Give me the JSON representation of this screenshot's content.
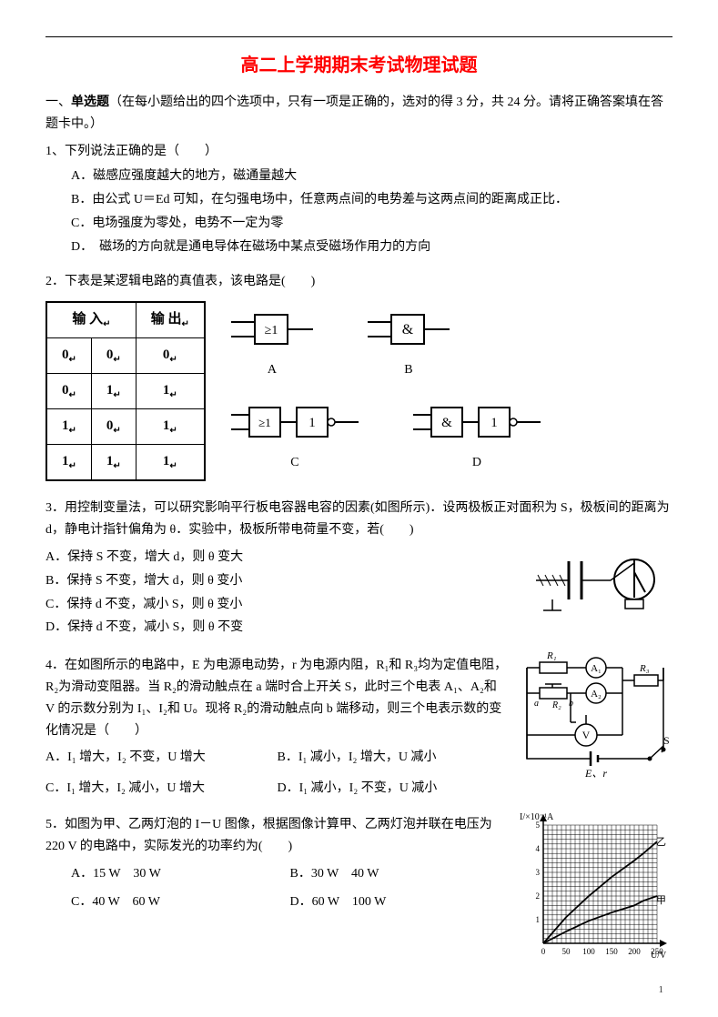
{
  "title": "高二上学期期末考试物理试题",
  "section1_header": "一、单选题（在每小题给出的四个选项中，只有一项是正确的，选对的得 3 分，共 24 分。请将正确答案填在答题卡中。）",
  "bold_word": "单选题",
  "q1": {
    "stem": "1、下列说法正确的是（　　）",
    "A": "A．磁感应强度越大的地方，磁通量越大",
    "B": "B．由公式 U＝Ed 可知，在匀强电场中，任意两点间的电势差与这两点间的距离成正比．",
    "C": "C．电场强度为零处，电势不一定为零",
    "D": "D．　磁场的方向就是通电导体在磁场中某点受磁场作用力的方向"
  },
  "q2": {
    "stem": "2．下表是某逻辑电路的真值表，该电路是(　　)",
    "table": {
      "head_in": "输 入",
      "head_out": "输 出",
      "rows": [
        [
          "0",
          "0",
          "0"
        ],
        [
          "0",
          "1",
          "1"
        ],
        [
          "1",
          "0",
          "1"
        ],
        [
          "1",
          "1",
          "1"
        ]
      ],
      "border_color": "#000000",
      "cell_font_size": 15,
      "suffix_mark": "↵"
    },
    "gates": {
      "A": {
        "label": "A",
        "blocks": [
          "≥1"
        ]
      },
      "B": {
        "label": "B",
        "blocks": [
          "&"
        ]
      },
      "C": {
        "label": "C",
        "blocks": [
          "≥1",
          "1"
        ],
        "invert_last": true
      },
      "D": {
        "label": "D",
        "blocks": [
          "&",
          "1"
        ],
        "invert_last": true
      }
    }
  },
  "q3": {
    "stem1": "3．用控制变量法，可以研究影响平行板电容器电容的因素(如图所示)．设两极板正对面积为 S，极板间的距离为 d，静电计指针偏角为 θ．实验中，极板所带电荷量不变，若(　　)",
    "A": "A．保持 S 不变，增大 d，则 θ 变大",
    "B": "B．保持 S 不变，增大 d，则 θ 变小",
    "C": "C．保持 d 不变，减小 S，则 θ 变小",
    "D": "D．保持 d 不变，减小 S，则 θ 不变"
  },
  "q4": {
    "stem": "4．在如图所示的电路中，E 为电源电动势，r 为电源内阻，R₁和 R₃均为定值电阻，R₂为滑动变阻器。当 R₂的滑动触点在 a 端时合上开关 S，此时三个电表 A₁、A₂和 V 的示数分别为 I₁、I₂和 U。现将 R₂的滑动触点向 b 端移动，则三个电表示数的变化情况是（　　）",
    "A": "A．I₁ 增大，I₂ 不变，U 增大",
    "B": "B．I₁ 减小，I₂ 增大，U 减小",
    "C": "C．I₁ 增大，I₂ 减小，U 增大",
    "D": "D．I₁ 减小，I₂ 不变，U 减小",
    "fig": {
      "R1": "R₁",
      "R2": "R₂",
      "R3": "R₃",
      "A1": "A₁",
      "A2": "A₂",
      "V": "V",
      "a": "a",
      "b": "b",
      "S": "S",
      "Er": "E、r"
    }
  },
  "q5": {
    "stem": "5．如图为甲、乙两灯泡的 I－U 图像，根据图像计算甲、乙两灯泡并联在电压为 220 V 的电路中，实际发光的功率约为(　　)",
    "A": "A．15 W　30 W",
    "B": "B．30 W　40 W",
    "C": "C．40 W　60 W",
    "D": "D．60 W　100 W",
    "chart": {
      "type": "line",
      "xlabel_ticks": [
        "0",
        "50",
        "100",
        "150",
        "200",
        "250"
      ],
      "xlabel_unit": "U/V",
      "ylabel": "I/×10⁻¹A",
      "ylim": [
        0,
        5
      ],
      "xlim": [
        0,
        250
      ],
      "grid_color": "#000000",
      "background_color": "#ffffff",
      "series": {
        "甲": {
          "label": "甲",
          "color": "#000000",
          "points": [
            [
              0,
              0
            ],
            [
              50,
              0.5
            ],
            [
              100,
              0.95
            ],
            [
              150,
              1.3
            ],
            [
              200,
              1.6
            ],
            [
              220,
              1.8
            ],
            [
              250,
              2.0
            ]
          ]
        },
        "乙": {
          "label": "乙",
          "color": "#000000",
          "points": [
            [
              0,
              0
            ],
            [
              50,
              1.1
            ],
            [
              100,
              2.0
            ],
            [
              150,
              2.8
            ],
            [
              200,
              3.5
            ],
            [
              220,
              3.8
            ],
            [
              250,
              4.3
            ]
          ]
        }
      },
      "label_fontsize": 10
    }
  },
  "page_number": "1"
}
